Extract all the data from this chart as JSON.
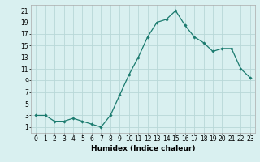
{
  "x": [
    0,
    1,
    2,
    3,
    4,
    5,
    6,
    7,
    8,
    9,
    10,
    11,
    12,
    13,
    14,
    15,
    16,
    17,
    18,
    19,
    20,
    21,
    22,
    23
  ],
  "y": [
    3,
    3,
    2,
    2,
    2.5,
    2,
    1.5,
    1,
    3,
    6.5,
    10,
    13,
    16.5,
    19,
    19.5,
    21,
    18.5,
    16.5,
    15.5,
    14,
    14.5,
    14.5,
    11,
    9.5
  ],
  "line_color": "#1a7a6e",
  "marker": "D",
  "marker_size": 1.8,
  "bg_color": "#d9f0f0",
  "grid_color": "#b8d8d8",
  "xlabel": "Humidex (Indice chaleur)",
  "xlim": [
    -0.5,
    23.5
  ],
  "ylim": [
    0,
    22
  ],
  "yticks": [
    1,
    3,
    5,
    7,
    9,
    11,
    13,
    15,
    17,
    19,
    21
  ],
  "xtick_labels": [
    "0",
    "1",
    "2",
    "3",
    "4",
    "5",
    "6",
    "7",
    "8",
    "9",
    "10",
    "11",
    "12",
    "13",
    "14",
    "15",
    "16",
    "17",
    "18",
    "19",
    "20",
    "21",
    "22",
    "23"
  ],
  "xlabel_fontsize": 6.5,
  "tick_fontsize": 5.5
}
